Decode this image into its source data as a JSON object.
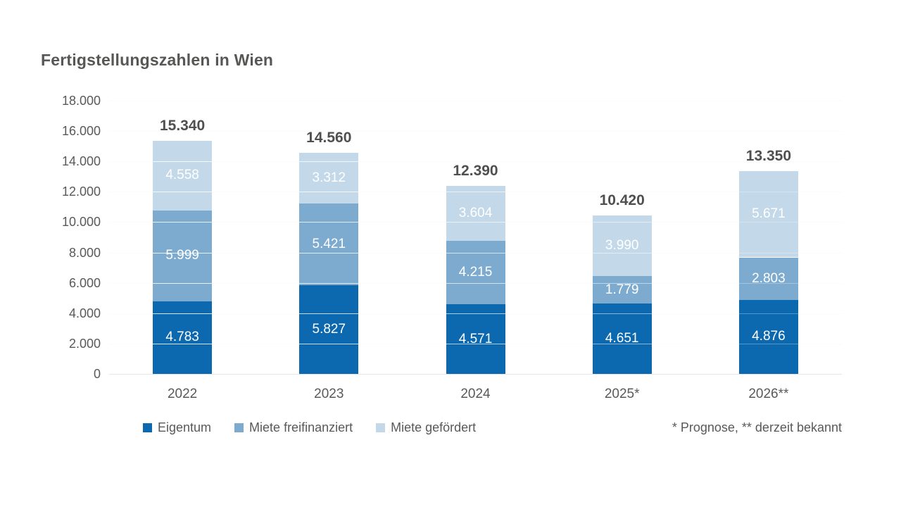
{
  "page": {
    "background_color": "#ffffff"
  },
  "chart_data": {
    "type": "bar",
    "stacked": true,
    "title": "Fertigstellungszahlen in Wien",
    "categories": [
      "2022",
      "2023",
      "2024",
      "2025*",
      "2026**"
    ],
    "series": [
      {
        "name": "Eigentum",
        "color": "#0c69b0",
        "values": [
          4783,
          5827,
          4571,
          4651,
          4876
        ],
        "labels": [
          "4.783",
          "5.827",
          "4.571",
          "4.651",
          "4.876"
        ]
      },
      {
        "name": "Miete freifinanziert",
        "color": "#7dabd0",
        "values": [
          5999,
          5421,
          4215,
          1779,
          2803
        ],
        "labels": [
          "5.999",
          "5.421",
          "4.215",
          "1.779",
          "2.803"
        ]
      },
      {
        "name": "Miete gefördert",
        "color": "#c3d9ea",
        "values": [
          4558,
          3312,
          3604,
          3990,
          5671
        ],
        "labels": [
          "4.558",
          "3.312",
          "3.604",
          "3.990",
          "5.671"
        ]
      }
    ],
    "totals": {
      "values": [
        15340,
        14560,
        12390,
        10420,
        13350
      ],
      "labels": [
        "15.340",
        "14.560",
        "12.390",
        "10.420",
        "13.350"
      ]
    },
    "y_axis": {
      "min": 0,
      "max": 18000,
      "step": 2000,
      "tick_labels": [
        "0",
        "2.000",
        "4.000",
        "6.000",
        "8.000",
        "10.000",
        "12.000",
        "14.000",
        "16.000",
        "18.000"
      ]
    },
    "legend": {
      "position": "bottom",
      "entries": [
        "Eigentum",
        "Miete freifinanziert",
        "Miete gefördert"
      ]
    },
    "footnote": "* Prognose, ** derzeit bekannt",
    "grid": true,
    "colors": {
      "gridline": "#e6e6e6",
      "title_text": "#575756",
      "axis_text": "#595959",
      "total_text": "#4f4f4f",
      "bar_label_text": "#ffffff"
    }
  }
}
